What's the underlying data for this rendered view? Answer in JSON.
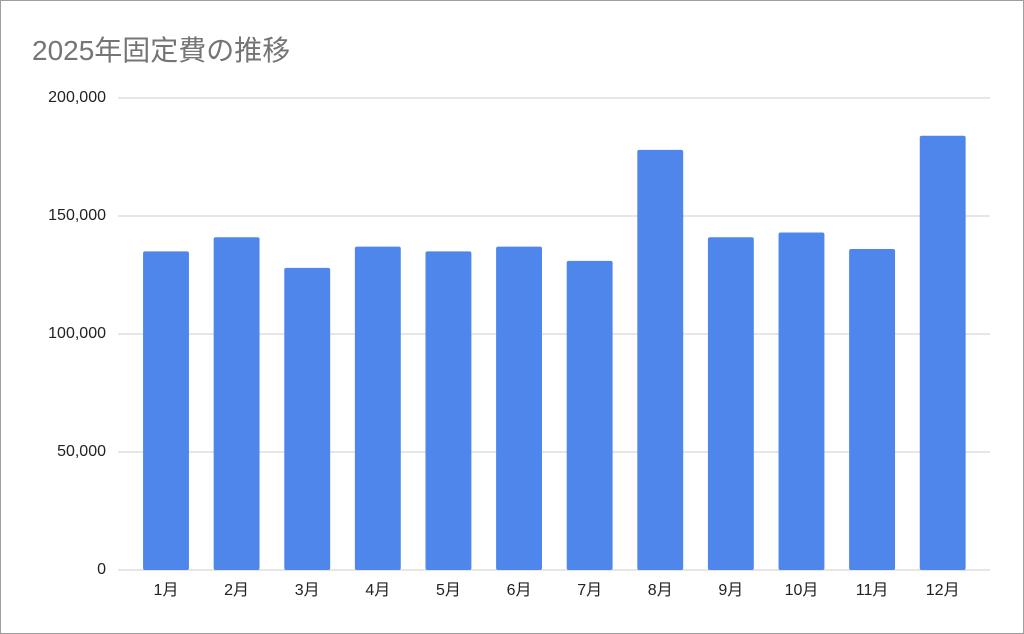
{
  "chart_data": {
    "type": "bar",
    "title": "2025年固定費の推移",
    "categories": [
      "1月",
      "2月",
      "3月",
      "4月",
      "5月",
      "6月",
      "7月",
      "8月",
      "9月",
      "10月",
      "11月",
      "12月"
    ],
    "values": [
      135000,
      141000,
      128000,
      137000,
      135000,
      137000,
      131000,
      178000,
      141000,
      143000,
      136000,
      184000
    ],
    "color": "#4f86ec",
    "ylim": [
      0,
      200000
    ],
    "yticks": [
      0,
      {
        "value": 50000,
        "label": "50,000"
      },
      {
        "value": 100000,
        "label": "100,000"
      },
      {
        "value": 150000,
        "label": "150,000"
      },
      {
        "value": 200000,
        "label": "200,000"
      }
    ],
    "grid": true
  }
}
